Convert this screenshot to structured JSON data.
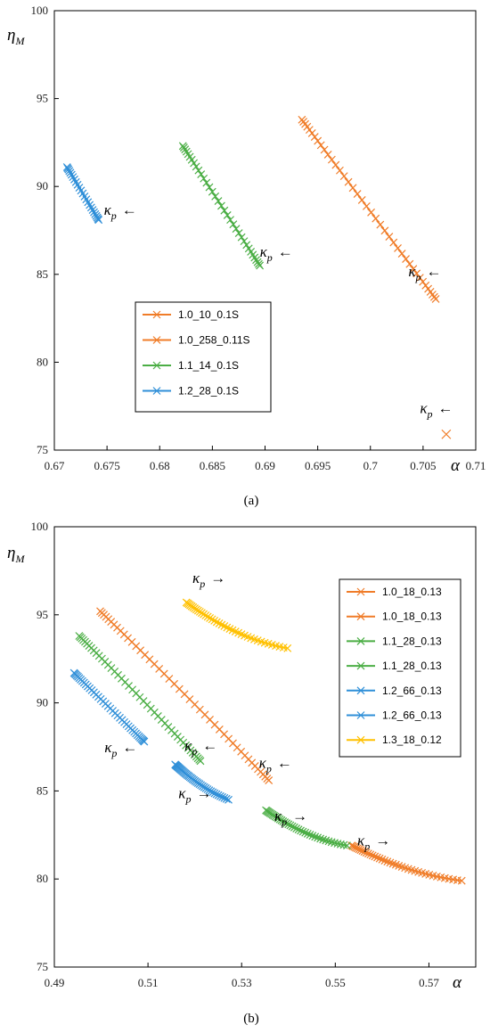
{
  "chart_data": [
    {
      "panel": "a",
      "type": "line",
      "caption": "(a)",
      "xlabel": "α",
      "ylabel_main": "η",
      "ylabel_sub": "M",
      "xlim": [
        0.67,
        0.71
      ],
      "ylim": [
        75,
        100
      ],
      "xticks": [
        0.67,
        0.675,
        0.68,
        0.685,
        0.69,
        0.695,
        0.7,
        0.705,
        0.71
      ],
      "xtick_labels": [
        "0.67",
        "0.675",
        "0.68",
        "0.685",
        "0.69",
        "0.695",
        "0.7",
        "0.705",
        "0.71"
      ],
      "yticks": [
        75,
        80,
        85,
        90,
        95,
        100
      ],
      "ytick_labels": [
        "75",
        "80",
        "85",
        "90",
        "95",
        "100"
      ],
      "grid": false,
      "legend_position": "center-left",
      "series": [
        {
          "name": "1.0_10_0.1S",
          "color": "#F07C28",
          "curvature": 0.0,
          "x_start": 0.6935,
          "y_start": 93.8,
          "x_end": 0.7062,
          "y_end": 83.6,
          "markers": 40,
          "line": true
        },
        {
          "name": "1.0_258_0.11S",
          "color": "#F07C28",
          "curvature": 0.0,
          "x_start": 0.7072,
          "y_start": 75.9,
          "x_end": 0.7072,
          "y_end": 75.9,
          "markers": 1,
          "line": false
        },
        {
          "name": "1.1_14_0.1S",
          "color": "#4BAE45",
          "curvature": 0.0,
          "x_start": 0.6822,
          "y_start": 92.3,
          "x_end": 0.6895,
          "y_end": 85.5,
          "markers": 35,
          "line": true
        },
        {
          "name": "1.2_28_0.1S",
          "color": "#2F8FD8",
          "curvature": 0.0,
          "x_start": 0.6712,
          "y_start": 91.1,
          "x_end": 0.6742,
          "y_end": 88.1,
          "markers": 25,
          "line": true
        }
      ],
      "annotations": [
        {
          "text": "κ",
          "sub": "p",
          "arrow": "←",
          "x": 0.6747,
          "y": 88.4
        },
        {
          "text": "κ",
          "sub": "p",
          "arrow": "←",
          "x": 0.6895,
          "y": 86.0
        },
        {
          "text": "κ",
          "sub": "p",
          "arrow": "←",
          "x": 0.7036,
          "y": 84.9
        },
        {
          "text": "κ",
          "sub": "p",
          "arrow": "←",
          "x": 0.7047,
          "y": 77.1
        }
      ]
    },
    {
      "panel": "b",
      "type": "line",
      "caption": "(b)",
      "xlabel": "α",
      "ylabel_main": "η",
      "ylabel_sub": "M",
      "xlim": [
        0.49,
        0.58
      ],
      "ylim": [
        75,
        100
      ],
      "xticks": [
        0.49,
        0.51,
        0.53,
        0.55,
        0.57
      ],
      "xtick_labels": [
        "0.49",
        "0.51",
        "0.53",
        "0.55",
        "0.57"
      ],
      "yticks": [
        75,
        80,
        85,
        90,
        95,
        100
      ],
      "ytick_labels": [
        "75",
        "80",
        "85",
        "90",
        "95",
        "100"
      ],
      "grid": false,
      "legend_position": "top-right",
      "series": [
        {
          "name": "1.0_18_0.13",
          "color": "#F07C28",
          "curvature": 0.02,
          "x_start": 0.4998,
          "y_start": 95.2,
          "x_end": 0.5358,
          "y_end": 85.6,
          "markers": 45,
          "line": true
        },
        {
          "name": "1.0_18_0.13",
          "color": "#F07C28",
          "curvature": -0.3,
          "x_start": 0.5535,
          "y_start": 81.9,
          "x_end": 0.577,
          "y_end": 79.9,
          "markers": 40,
          "line": true
        },
        {
          "name": "1.1_28_0.13",
          "color": "#4BAE45",
          "curvature": 0.02,
          "x_start": 0.4953,
          "y_start": 93.8,
          "x_end": 0.5212,
          "y_end": 86.7,
          "markers": 45,
          "line": true
        },
        {
          "name": "1.1_28_0.13",
          "color": "#4BAE45",
          "curvature": -0.3,
          "x_start": 0.5352,
          "y_start": 83.9,
          "x_end": 0.5525,
          "y_end": 81.9,
          "markers": 40,
          "line": true
        },
        {
          "name": "1.2_66_0.13",
          "color": "#2F8FD8",
          "curvature": 0.0,
          "x_start": 0.4942,
          "y_start": 91.7,
          "x_end": 0.5092,
          "y_end": 87.8,
          "markers": 40,
          "line": true
        },
        {
          "name": "1.2_66_0.13",
          "color": "#2F8FD8",
          "curvature": -0.2,
          "x_start": 0.5158,
          "y_start": 86.5,
          "x_end": 0.5272,
          "y_end": 84.5,
          "markers": 40,
          "line": true
        },
        {
          "name": "1.3_18_0.12",
          "color": "#FFC000",
          "curvature": -0.3,
          "x_start": 0.5182,
          "y_start": 95.7,
          "x_end": 0.5398,
          "y_end": 93.1,
          "markers": 40,
          "line": true
        }
      ],
      "annotations": [
        {
          "text": "κ",
          "sub": "p",
          "arrow": "→",
          "x": 0.5195,
          "y": 96.8
        },
        {
          "text": "κ",
          "sub": "p",
          "arrow": "←",
          "x": 0.5007,
          "y": 87.2
        },
        {
          "text": "κ",
          "sub": "p",
          "arrow": "←",
          "x": 0.5178,
          "y": 87.3
        },
        {
          "text": "κ",
          "sub": "p",
          "arrow": "←",
          "x": 0.5337,
          "y": 86.3
        },
        {
          "text": "κ",
          "sub": "p",
          "arrow": "→",
          "x": 0.5165,
          "y": 84.6
        },
        {
          "text": "κ",
          "sub": "p",
          "arrow": "→",
          "x": 0.537,
          "y": 83.3
        },
        {
          "text": "κ",
          "sub": "p",
          "arrow": "→",
          "x": 0.5547,
          "y": 81.9
        }
      ]
    }
  ]
}
